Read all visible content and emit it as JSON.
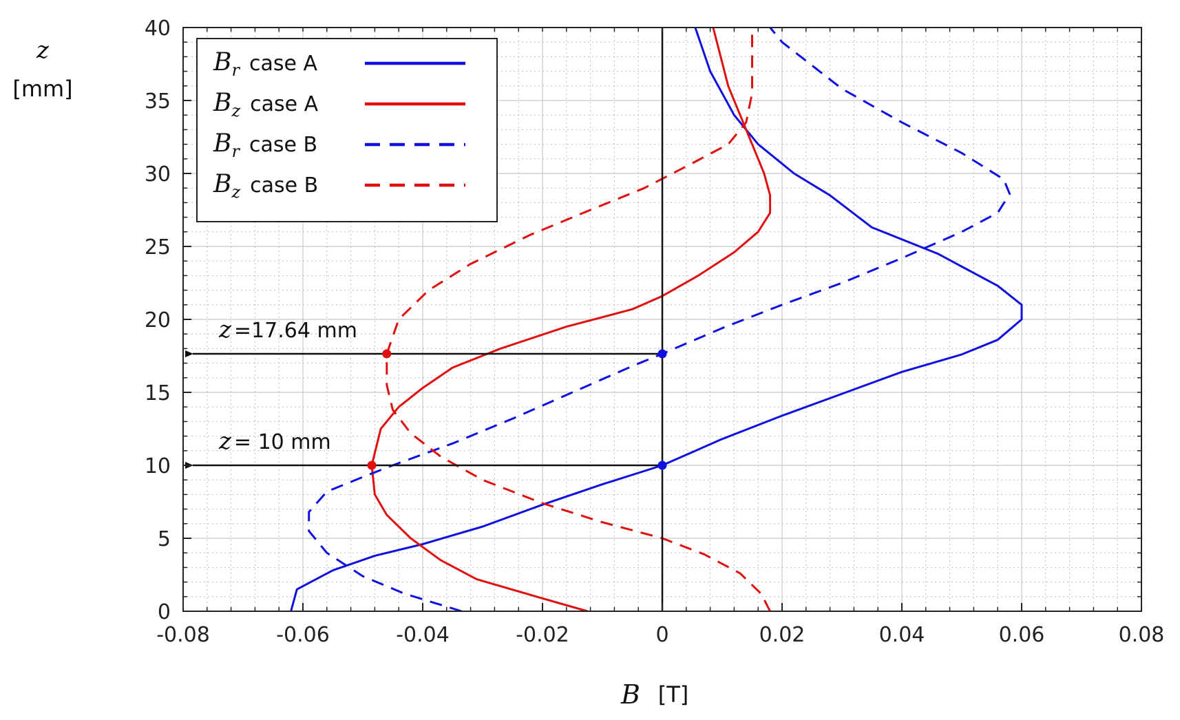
{
  "chart_data": {
    "type": "line",
    "title": "",
    "xlabel": {
      "symbol": "B",
      "unit": "[T]"
    },
    "ylabel": {
      "symbol": "z",
      "unit": "[mm]"
    },
    "xlim": [
      -0.08,
      0.08
    ],
    "ylim": [
      0,
      40
    ],
    "xticks": [
      -0.08,
      -0.06,
      -0.04,
      -0.02,
      0,
      0.02,
      0.04,
      0.06,
      0.08
    ],
    "xtick_labels": [
      "-0.08",
      "-0.06",
      "-0.04",
      "-0.02",
      "0",
      "0.02",
      "0.04",
      "0.06",
      "0.08"
    ],
    "yticks": [
      0,
      5,
      10,
      15,
      20,
      25,
      30,
      35,
      40
    ],
    "ytick_labels": [
      "0",
      "5",
      "10",
      "15",
      "20",
      "25",
      "30",
      "35",
      "40"
    ],
    "grid": true,
    "legend_position": "top-left",
    "series": [
      {
        "name": "Br case A",
        "symbol": "B",
        "sub": "r",
        "label": "case A",
        "color": "#1010e0",
        "dash": "solid",
        "points": [
          [
            -0.062,
            0
          ],
          [
            -0.061,
            1.5
          ],
          [
            -0.055,
            2.8
          ],
          [
            -0.048,
            3.8
          ],
          [
            -0.04,
            4.6
          ],
          [
            -0.03,
            5.8
          ],
          [
            -0.02,
            7.3
          ],
          [
            -0.01,
            8.7
          ],
          [
            0,
            10
          ],
          [
            0.01,
            11.8
          ],
          [
            0.02,
            13.4
          ],
          [
            0.03,
            14.9
          ],
          [
            0.04,
            16.4
          ],
          [
            0.05,
            17.6
          ],
          [
            0.056,
            18.6
          ],
          [
            0.06,
            20.0
          ],
          [
            0.06,
            21.0
          ],
          [
            0.056,
            22.3
          ],
          [
            0.046,
            24.5
          ],
          [
            0.035,
            26.3
          ],
          [
            0.028,
            28.5
          ],
          [
            0.022,
            30.0
          ],
          [
            0.016,
            32.0
          ],
          [
            0.012,
            34.0
          ],
          [
            0.008,
            37.0
          ],
          [
            0.0055,
            40
          ]
        ]
      },
      {
        "name": "Bz case A",
        "symbol": "B",
        "sub": "z",
        "label": "case A",
        "color": "#e01010",
        "dash": "solid",
        "points": [
          [
            -0.0125,
            0
          ],
          [
            -0.021,
            1.0
          ],
          [
            -0.031,
            2.2
          ],
          [
            -0.037,
            3.5
          ],
          [
            -0.042,
            5.0
          ],
          [
            -0.046,
            6.6
          ],
          [
            -0.048,
            8.0
          ],
          [
            -0.0485,
            10.0
          ],
          [
            -0.047,
            12.5
          ],
          [
            -0.044,
            14.0
          ],
          [
            -0.04,
            15.3
          ],
          [
            -0.035,
            16.7
          ],
          [
            -0.027,
            18.0
          ],
          [
            -0.016,
            19.5
          ],
          [
            -0.005,
            20.7
          ],
          [
            0,
            21.6
          ],
          [
            0.006,
            23.0
          ],
          [
            0.012,
            24.6
          ],
          [
            0.016,
            26.0
          ],
          [
            0.018,
            27.3
          ],
          [
            0.018,
            28.5
          ],
          [
            0.017,
            30.0
          ],
          [
            0.015,
            32.0
          ],
          [
            0.013,
            34.0
          ],
          [
            0.011,
            36.0
          ],
          [
            0.0085,
            40
          ]
        ]
      },
      {
        "name": "Br case B",
        "symbol": "B",
        "sub": "r",
        "label": "case B",
        "color": "#1010e0",
        "dash": "dashed",
        "points": [
          [
            -0.0335,
            0
          ],
          [
            -0.043,
            1.2
          ],
          [
            -0.05,
            2.4
          ],
          [
            -0.056,
            4.0
          ],
          [
            -0.059,
            5.5
          ],
          [
            -0.059,
            6.8
          ],
          [
            -0.056,
            8.2
          ],
          [
            -0.05,
            9.2
          ],
          [
            -0.045,
            10.0
          ],
          [
            -0.035,
            11.5
          ],
          [
            -0.025,
            13.2
          ],
          [
            -0.015,
            15.0
          ],
          [
            -0.005,
            16.8
          ],
          [
            0,
            17.64
          ],
          [
            0.01,
            19.4
          ],
          [
            0.02,
            21.0
          ],
          [
            0.03,
            22.5
          ],
          [
            0.04,
            24.2
          ],
          [
            0.05,
            26.0
          ],
          [
            0.056,
            27.3
          ],
          [
            0.058,
            28.6
          ],
          [
            0.057,
            29.6
          ],
          [
            0.05,
            31.4
          ],
          [
            0.04,
            33.5
          ],
          [
            0.03,
            35.8
          ],
          [
            0.02,
            39.0
          ],
          [
            0.018,
            40
          ]
        ]
      },
      {
        "name": "Bz case B",
        "symbol": "B",
        "sub": "z",
        "label": "case B",
        "color": "#e01010",
        "dash": "dashed",
        "points": [
          [
            0.018,
            0
          ],
          [
            0.0165,
            1.2
          ],
          [
            0.013,
            2.6
          ],
          [
            0.007,
            3.9
          ],
          [
            0,
            5.0
          ],
          [
            -0.01,
            6.1
          ],
          [
            -0.02,
            7.4
          ],
          [
            -0.03,
            9.0
          ],
          [
            -0.037,
            10.6
          ],
          [
            -0.042,
            12.2
          ],
          [
            -0.045,
            13.8
          ],
          [
            -0.046,
            15.5
          ],
          [
            -0.046,
            17.64
          ],
          [
            -0.044,
            20.0
          ],
          [
            -0.039,
            22.0
          ],
          [
            -0.032,
            23.8
          ],
          [
            -0.022,
            25.8
          ],
          [
            -0.012,
            27.5
          ],
          [
            -0.003,
            29.0
          ],
          [
            0.005,
            30.7
          ],
          [
            0.011,
            32.0
          ],
          [
            0.014,
            33.5
          ],
          [
            0.015,
            35.5
          ],
          [
            0.015,
            37.5
          ],
          [
            0.015,
            40
          ]
        ]
      }
    ],
    "annotations": [
      {
        "prefix": "z",
        "text": "=17.64 mm",
        "z": 17.64,
        "markers": [
          {
            "x": -0.046,
            "color": "#e01010"
          },
          {
            "x": 0,
            "color": "#1010e0"
          }
        ]
      },
      {
        "prefix": "z",
        "text": "= 10 mm",
        "z": 10,
        "markers": [
          {
            "x": -0.0485,
            "color": "#e01010"
          },
          {
            "x": 0,
            "color": "#1010e0"
          }
        ]
      }
    ]
  }
}
